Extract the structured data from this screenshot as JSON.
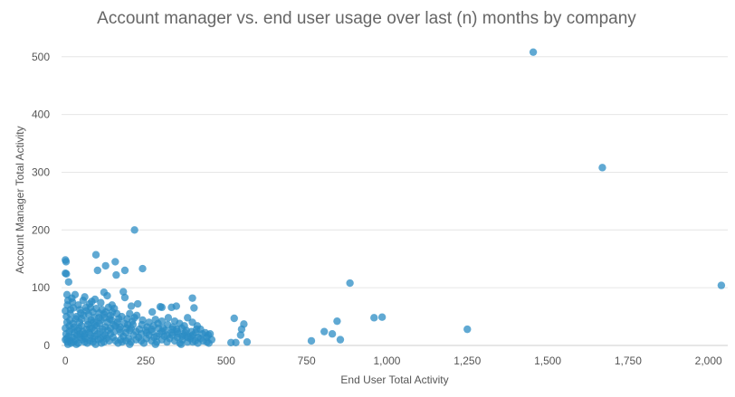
{
  "chart_data": {
    "type": "scatter",
    "title": "Account manager vs. end user usage over last (n) months by company",
    "xlabel": "End User Total Activity",
    "ylabel": "Account Manager Total Activity",
    "xlim": [
      -12,
      2060
    ],
    "ylim": [
      0,
      520
    ],
    "xticks": [
      0,
      250,
      500,
      750,
      1000,
      1250,
      1500,
      1750,
      2000
    ],
    "xtick_labels": [
      "0",
      "250",
      "500",
      "750",
      "1,000",
      "1,250",
      "1,500",
      "1,750",
      "2,000"
    ],
    "yticks": [
      0,
      100,
      200,
      300,
      400,
      500
    ],
    "ytick_labels": [
      "0",
      "100",
      "200",
      "300",
      "400",
      "500"
    ],
    "grid": "horizontal",
    "legend": "none",
    "point_color": "#2b8cc4",
    "points": [
      [
        1455,
        508
      ],
      [
        1670,
        308
      ],
      [
        2040,
        104
      ],
      [
        215,
        200
      ],
      [
        95,
        157
      ],
      [
        155,
        145
      ],
      [
        0,
        148
      ],
      [
        2,
        145
      ],
      [
        0,
        125
      ],
      [
        3,
        124
      ],
      [
        125,
        138
      ],
      [
        185,
        130
      ],
      [
        240,
        133
      ],
      [
        100,
        130
      ],
      [
        158,
        122
      ],
      [
        10,
        110
      ],
      [
        885,
        108
      ],
      [
        960,
        48
      ],
      [
        985,
        49
      ],
      [
        1250,
        28
      ],
      [
        845,
        42
      ],
      [
        805,
        24
      ],
      [
        830,
        20
      ],
      [
        855,
        10
      ],
      [
        765,
        8
      ],
      [
        525,
        47
      ],
      [
        555,
        37
      ],
      [
        548,
        28
      ],
      [
        545,
        18
      ],
      [
        515,
        5
      ],
      [
        530,
        5
      ],
      [
        565,
        6
      ],
      [
        395,
        82
      ],
      [
        400,
        65
      ],
      [
        345,
        68
      ],
      [
        330,
        66
      ],
      [
        295,
        67
      ],
      [
        300,
        66
      ],
      [
        270,
        58
      ],
      [
        120,
        92
      ],
      [
        130,
        86
      ],
      [
        180,
        93
      ],
      [
        5,
        88
      ],
      [
        30,
        88
      ],
      [
        20,
        82
      ],
      [
        8,
        78
      ],
      [
        22,
        75
      ],
      [
        55,
        78
      ],
      [
        75,
        72
      ],
      [
        82,
        76
      ],
      [
        92,
        80
      ],
      [
        110,
        74
      ],
      [
        145,
        70
      ],
      [
        185,
        83
      ],
      [
        205,
        68
      ],
      [
        225,
        72
      ],
      [
        25,
        65
      ],
      [
        45,
        62
      ],
      [
        65,
        60
      ],
      [
        85,
        58
      ],
      [
        105,
        56
      ],
      [
        125,
        58
      ],
      [
        140,
        52
      ],
      [
        160,
        55
      ],
      [
        175,
        50
      ],
      [
        200,
        55
      ],
      [
        215,
        48
      ],
      [
        240,
        44
      ],
      [
        260,
        40
      ],
      [
        280,
        45
      ],
      [
        300,
        42
      ],
      [
        320,
        48
      ],
      [
        340,
        42
      ],
      [
        355,
        38
      ],
      [
        370,
        34
      ],
      [
        380,
        48
      ],
      [
        395,
        40
      ],
      [
        410,
        34
      ],
      [
        420,
        28
      ],
      [
        435,
        22
      ],
      [
        450,
        20
      ],
      [
        15,
        55
      ],
      [
        35,
        50
      ],
      [
        50,
        46
      ],
      [
        70,
        42
      ],
      [
        90,
        48
      ],
      [
        110,
        44
      ],
      [
        130,
        40
      ],
      [
        150,
        36
      ],
      [
        170,
        32
      ],
      [
        190,
        30
      ],
      [
        210,
        36
      ],
      [
        230,
        28
      ],
      [
        250,
        26
      ],
      [
        270,
        24
      ],
      [
        290,
        30
      ],
      [
        310,
        26
      ],
      [
        330,
        22
      ],
      [
        350,
        20
      ],
      [
        370,
        18
      ],
      [
        390,
        16
      ],
      [
        405,
        22
      ],
      [
        420,
        12
      ],
      [
        440,
        14
      ],
      [
        455,
        10
      ],
      [
        5,
        40
      ],
      [
        12,
        34
      ],
      [
        20,
        28
      ],
      [
        28,
        22
      ],
      [
        36,
        18
      ],
      [
        44,
        14
      ],
      [
        52,
        10
      ],
      [
        60,
        6
      ],
      [
        68,
        4
      ],
      [
        76,
        8
      ],
      [
        84,
        12
      ],
      [
        92,
        16
      ],
      [
        100,
        20
      ],
      [
        108,
        24
      ],
      [
        116,
        28
      ],
      [
        124,
        32
      ],
      [
        132,
        26
      ],
      [
        140,
        20
      ],
      [
        148,
        14
      ],
      [
        156,
        8
      ],
      [
        164,
        4
      ],
      [
        172,
        10
      ],
      [
        180,
        16
      ],
      [
        188,
        22
      ],
      [
        196,
        12
      ],
      [
        204,
        6
      ],
      [
        212,
        18
      ],
      [
        220,
        24
      ],
      [
        228,
        14
      ],
      [
        236,
        8
      ],
      [
        244,
        4
      ],
      [
        252,
        12
      ],
      [
        260,
        18
      ],
      [
        268,
        8
      ],
      [
        276,
        14
      ],
      [
        284,
        6
      ],
      [
        292,
        20
      ],
      [
        300,
        10
      ],
      [
        308,
        16
      ],
      [
        316,
        6
      ],
      [
        324,
        12
      ],
      [
        332,
        18
      ],
      [
        340,
        8
      ],
      [
        348,
        14
      ],
      [
        356,
        4
      ],
      [
        364,
        10
      ],
      [
        372,
        22
      ],
      [
        380,
        6
      ],
      [
        388,
        12
      ],
      [
        396,
        18
      ],
      [
        404,
        8
      ],
      [
        412,
        14
      ],
      [
        2,
        20
      ],
      [
        4,
        12
      ],
      [
        6,
        6
      ],
      [
        8,
        2
      ],
      [
        10,
        16
      ],
      [
        14,
        8
      ],
      [
        18,
        4
      ],
      [
        22,
        14
      ],
      [
        26,
        6
      ],
      [
        30,
        10
      ],
      [
        34,
        2
      ],
      [
        38,
        26
      ],
      [
        42,
        30
      ],
      [
        46,
        20
      ],
      [
        50,
        34
      ],
      [
        54,
        24
      ],
      [
        58,
        16
      ],
      [
        62,
        12
      ],
      [
        66,
        28
      ],
      [
        70,
        36
      ],
      [
        74,
        22
      ],
      [
        78,
        18
      ],
      [
        82,
        30
      ],
      [
        86,
        6
      ],
      [
        90,
        26
      ],
      [
        94,
        2
      ],
      [
        98,
        34
      ],
      [
        102,
        10
      ],
      [
        106,
        38
      ],
      [
        112,
        4
      ],
      [
        118,
        16
      ],
      [
        122,
        48
      ],
      [
        128,
        12
      ],
      [
        136,
        8
      ],
      [
        144,
        44
      ],
      [
        152,
        24
      ],
      [
        162,
        40
      ],
      [
        168,
        28
      ],
      [
        176,
        6
      ],
      [
        184,
        38
      ],
      [
        192,
        46
      ],
      [
        200,
        26
      ],
      [
        0,
        60
      ],
      [
        0,
        30
      ],
      [
        0,
        10
      ],
      [
        3,
        50
      ],
      [
        6,
        70
      ],
      [
        16,
        62
      ],
      [
        40,
        70
      ],
      [
        60,
        84
      ],
      [
        78,
        66
      ],
      [
        96,
        64
      ],
      [
        114,
        62
      ],
      [
        134,
        66
      ],
      [
        152,
        64
      ],
      [
        14,
        44
      ],
      [
        24,
        38
      ],
      [
        32,
        46
      ],
      [
        48,
        56
      ],
      [
        56,
        52
      ],
      [
        64,
        66
      ],
      [
        72,
        54
      ],
      [
        80,
        44
      ],
      [
        88,
        40
      ],
      [
        104,
        48
      ],
      [
        120,
        54
      ],
      [
        138,
        46
      ],
      [
        146,
        58
      ],
      [
        166,
        46
      ],
      [
        194,
        36
      ],
      [
        208,
        42
      ],
      [
        222,
        52
      ],
      [
        238,
        36
      ],
      [
        254,
        32
      ],
      [
        274,
        34
      ],
      [
        288,
        38
      ],
      [
        304,
        30
      ],
      [
        318,
        36
      ],
      [
        334,
        32
      ],
      [
        346,
        28
      ],
      [
        362,
        30
      ],
      [
        376,
        26
      ],
      [
        392,
        24
      ],
      [
        408,
        28
      ],
      [
        426,
        20
      ],
      [
        444,
        18
      ],
      [
        40,
        4
      ],
      [
        120,
        6
      ],
      [
        200,
        2
      ],
      [
        280,
        2
      ],
      [
        360,
        2
      ],
      [
        440,
        6
      ],
      [
        12,
        24
      ],
      [
        28,
        32
      ],
      [
        44,
        40
      ],
      [
        60,
        20
      ],
      [
        76,
        30
      ],
      [
        92,
        36
      ],
      [
        108,
        12
      ],
      [
        124,
        18
      ],
      [
        140,
        30
      ],
      [
        156,
        34
      ],
      [
        172,
        22
      ],
      [
        188,
        8
      ],
      [
        204,
        30
      ],
      [
        220,
        10
      ],
      [
        236,
        20
      ],
      [
        252,
        22
      ],
      [
        268,
        28
      ],
      [
        284,
        16
      ],
      [
        300,
        24
      ],
      [
        316,
        18
      ],
      [
        332,
        28
      ],
      [
        348,
        24
      ],
      [
        364,
        16
      ],
      [
        380,
        14
      ],
      [
        396,
        6
      ],
      [
        412,
        4
      ],
      [
        428,
        8
      ],
      [
        446,
        4
      ]
    ]
  }
}
